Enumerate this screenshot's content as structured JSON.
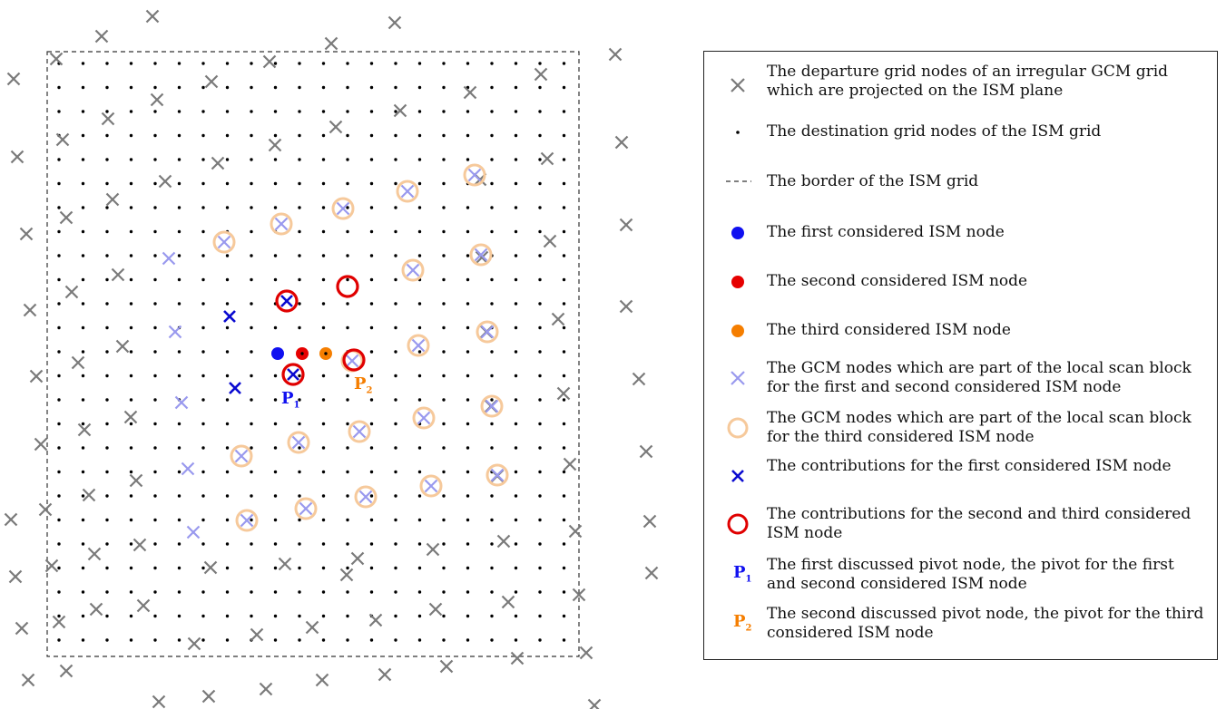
{
  "colors": {
    "gcm_gray": "#7a7a7a",
    "scan_block": "#9999ee",
    "third_block_ring": "#f6c99b",
    "first_node": "#1010f0",
    "second_node": "#e60000",
    "third_node": "#f57e00",
    "contrib_blue": "#0a0ad0",
    "contrib_red": "#e00000",
    "border": "#333333"
  },
  "diagram": {
    "pivot_labels": [
      {
        "letter": "P",
        "index": "1",
        "color": "#1010f0"
      },
      {
        "letter": "P",
        "index": "2",
        "color": "#f57e00"
      }
    ]
  },
  "legend": {
    "items": [
      {
        "symbol": "gray-cross-icon",
        "text": "The departure grid nodes of an irregular GCM grid which are projected on the ISM plane"
      },
      {
        "symbol": "black-dot-icon",
        "text": "The destination grid nodes of the ISM grid"
      },
      {
        "symbol": "dashed-line-icon",
        "text": "The border of the ISM grid"
      },
      {
        "symbol": "blue-dot-icon",
        "text": "The first considered ISM node"
      },
      {
        "symbol": "red-dot-icon",
        "text": "The second considered ISM node"
      },
      {
        "symbol": "orange-dot-icon",
        "text": "The third considered ISM node"
      },
      {
        "symbol": "light-blue-cross-icon",
        "text": "The GCM nodes which are part of the local scan block for the first and second considered ISM node"
      },
      {
        "symbol": "peach-ring-icon",
        "text": "The GCM nodes which are part of the local scan block for the third considered ISM node"
      },
      {
        "symbol": "blue-cross-icon",
        "text": "The contributions for the first considered ISM node"
      },
      {
        "symbol": "red-ring-icon",
        "text": "The contributions for the second and third considered ISM node"
      },
      {
        "symbol": "pivot-p1-icon",
        "letter": "P",
        "index": "1",
        "text": "The first discussed pivot node, the pivot for the first and second considered ISM node"
      },
      {
        "symbol": "pivot-p2-icon",
        "letter": "P",
        "index": "2",
        "text": "The second discussed pivot node, the pivot for the third considered ISM node"
      }
    ]
  }
}
